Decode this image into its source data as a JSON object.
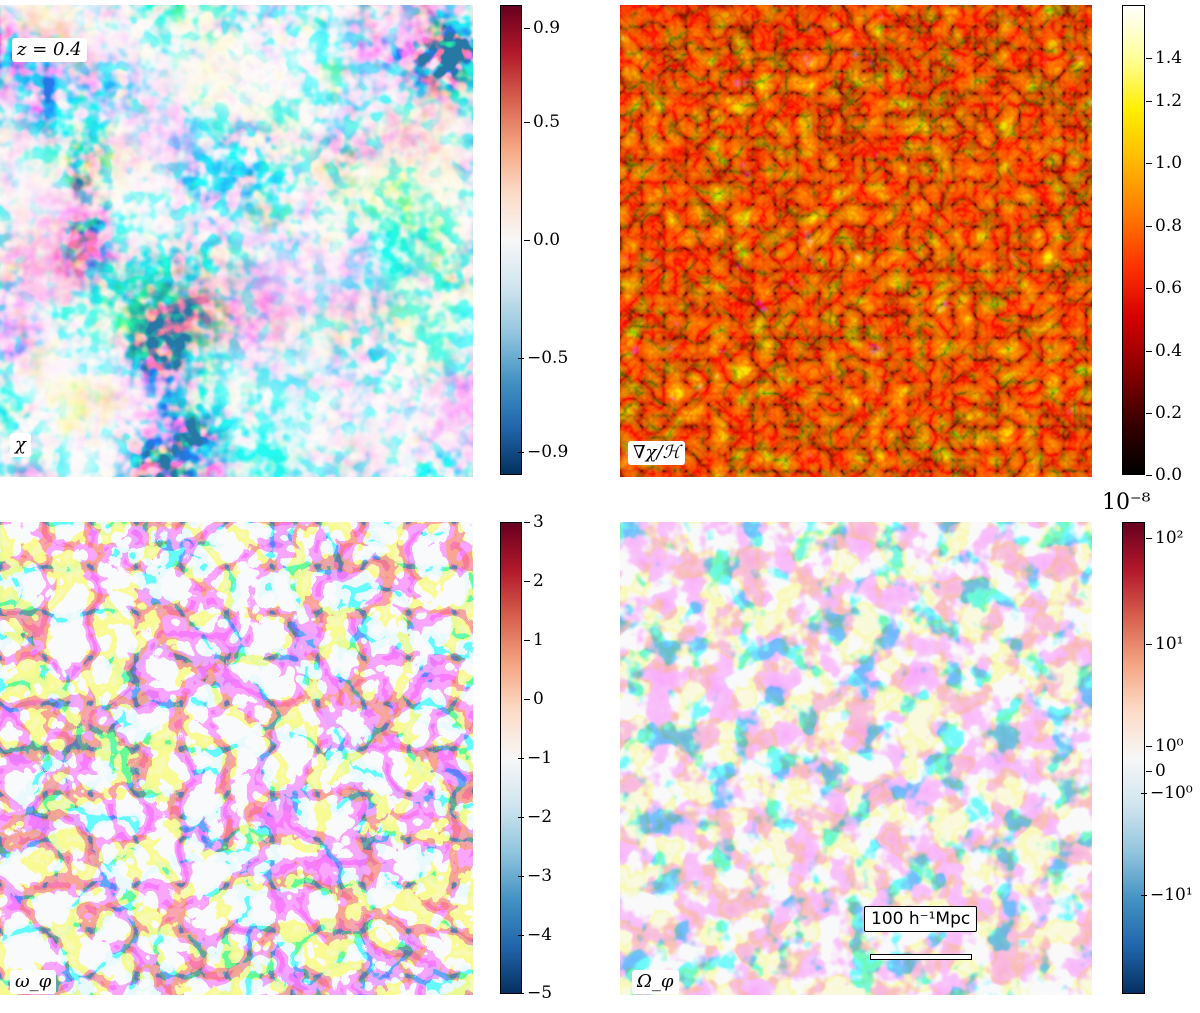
{
  "panels": [
    {
      "id": "chi",
      "label": "χ",
      "annotation": "z = 0.4",
      "colormap": [
        "#053061",
        "#2166ac",
        "#4393c3",
        "#92c5de",
        "#d1e5f0",
        "#f7f7f7",
        "#fddbc7",
        "#f4a582",
        "#d6604d",
        "#b2182b",
        "#67001f"
      ],
      "colorbar_ticks": [
        "0.9",
        "0.5",
        "0.0",
        "−0.5",
        "−0.9"
      ],
      "colorbar_range": [
        -1.0,
        1.0
      ]
    },
    {
      "id": "grad-chi",
      "label": "∇χ/ℋ",
      "colormap": [
        "#000000",
        "#3a0000",
        "#8b0000",
        "#d40000",
        "#ff3300",
        "#ff7a00",
        "#ffb800",
        "#ffee00",
        "#ffff99",
        "#ffffff"
      ],
      "colorbar_ticks": [
        "1.4",
        "1.2",
        "1.0",
        "0.8",
        "0.6",
        "0.4",
        "0.2",
        "0.0"
      ],
      "colorbar_range": [
        0.0,
        1.5
      ]
    },
    {
      "id": "omega-phi",
      "label": "ω_φ",
      "colormap": [
        "#053061",
        "#2166ac",
        "#4393c3",
        "#92c5de",
        "#d1e5f0",
        "#f7f7f7",
        "#fddbc7",
        "#f4a582",
        "#d6604d",
        "#b2182b",
        "#67001f"
      ],
      "colorbar_ticks": [
        "3",
        "2",
        "1",
        "0",
        "−1",
        "−2",
        "−3",
        "−4",
        "−5"
      ],
      "colorbar_range": [
        -5,
        3
      ]
    },
    {
      "id": "Omega-phi",
      "label": "Ω_φ",
      "colormap": [
        "#053061",
        "#2166ac",
        "#4393c3",
        "#92c5de",
        "#d1e5f0",
        "#f7f7f7",
        "#fddbc7",
        "#f4a582",
        "#d6604d",
        "#b2182b",
        "#67001f"
      ],
      "colorbar_ticks": [
        "10²",
        "10¹",
        "10⁰",
        "0",
        "−10⁰",
        "−10¹"
      ],
      "colorbar_exponent": "10⁻⁸",
      "scale_bar_label": "100 h⁻¹Mpc"
    }
  ]
}
